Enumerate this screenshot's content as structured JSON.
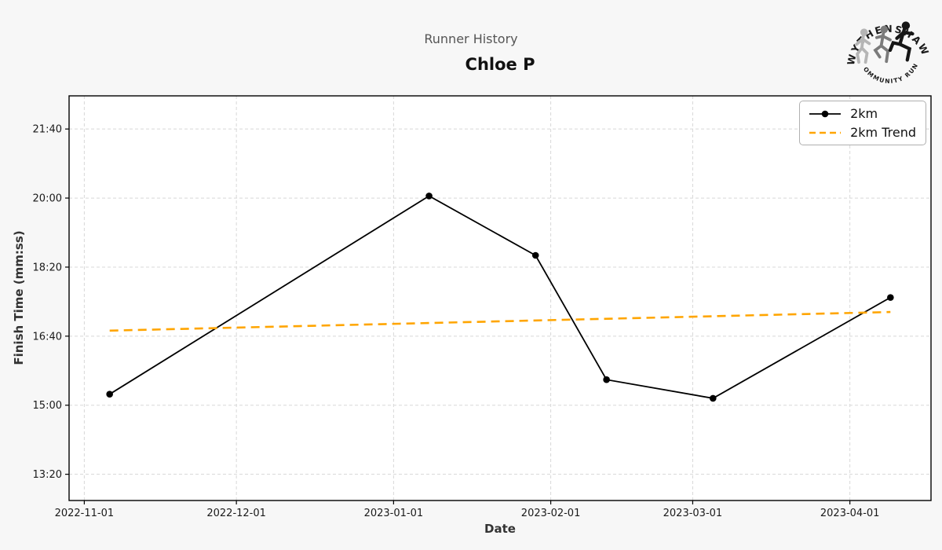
{
  "header": {
    "title": "Runner History",
    "subtitle": "Chloe P"
  },
  "logo": {
    "top_text": "WYTHENSHAWE",
    "bottom_text": "COMMUNITY RUN",
    "runner_colors": [
      "#b5b5b5",
      "#7b7b7b",
      "#161616"
    ]
  },
  "chart_data": {
    "type": "line",
    "title": "Runner History",
    "subtitle": "Chloe P",
    "xlabel": "Date",
    "ylabel": "Finish Time (mm:ss)",
    "grid": true,
    "legend_position": "upper right",
    "x_range": [
      "2022-10-29",
      "2023-04-17"
    ],
    "y_range_seconds": [
      762,
      1348
    ],
    "x_ticks": [
      "2022-11-01",
      "2022-12-01",
      "2023-01-01",
      "2023-02-01",
      "2023-03-01",
      "2023-04-01"
    ],
    "y_ticks": [
      "13:20",
      "15:00",
      "16:40",
      "18:20",
      "20:00",
      "21:40"
    ],
    "series": [
      {
        "name": "2km",
        "style": "solid",
        "marker": "circle",
        "color": "#000000",
        "points": [
          {
            "date": "2022-11-06",
            "finish_time": "15:16"
          },
          {
            "date": "2023-01-08",
            "finish_time": "20:03"
          },
          {
            "date": "2023-01-29",
            "finish_time": "18:37"
          },
          {
            "date": "2023-02-12",
            "finish_time": "15:37"
          },
          {
            "date": "2023-03-05",
            "finish_time": "15:10"
          },
          {
            "date": "2023-04-09",
            "finish_time": "17:36"
          }
        ]
      },
      {
        "name": "2km Trend",
        "style": "dashed",
        "marker": "none",
        "color": "#FFA500",
        "points": [
          {
            "date": "2022-11-06",
            "finish_time": "16:48"
          },
          {
            "date": "2023-04-09",
            "finish_time": "17:15"
          }
        ]
      }
    ]
  },
  "colors": {
    "figure_background": "#f7f7f7",
    "plot_background": "#ffffff",
    "grid": "#d8d8d8",
    "spine": "#000000",
    "tick_label": "#1a1a1a",
    "trend": "#FFA500"
  }
}
